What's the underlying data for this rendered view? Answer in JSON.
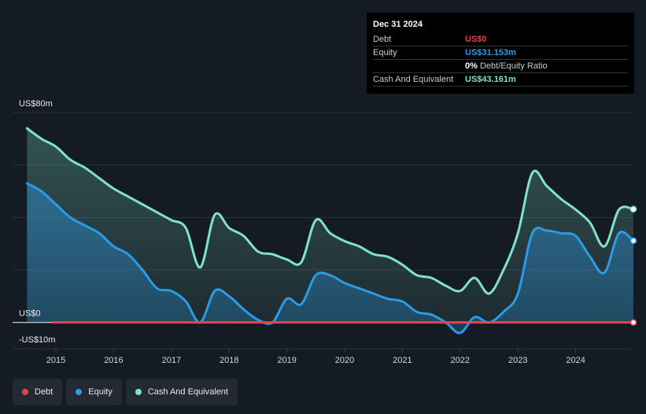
{
  "tooltip": {
    "date": "Dec 31 2024",
    "rows": [
      {
        "label": "Debt",
        "value": "US$0",
        "color": "#e8424d",
        "suffix": ""
      },
      {
        "label": "Equity",
        "value": "US$31.153m",
        "color": "#2c9be6",
        "suffix": ""
      },
      {
        "label": "",
        "value": "0%",
        "color": "#ffffff",
        "suffix": " Debt/Equity Ratio"
      },
      {
        "label": "Cash And Equivalent",
        "value": "US$43.161m",
        "color": "#7fe3cc",
        "suffix": ""
      }
    ]
  },
  "legend": [
    {
      "label": "Debt",
      "color": "#e8424d"
    },
    {
      "label": "Equity",
      "color": "#2c9be6"
    },
    {
      "label": "Cash And Equivalent",
      "color": "#7fe3cc"
    }
  ],
  "chart_data": {
    "type": "area",
    "x_ticks": [
      "2015",
      "2016",
      "2017",
      "2018",
      "2019",
      "2020",
      "2021",
      "2022",
      "2023",
      "2024"
    ],
    "y_tick_labels": [
      {
        "value": 80,
        "label": "US$80m"
      },
      {
        "value": 0,
        "label": "US$0"
      },
      {
        "value": -10,
        "label": "-US$10m"
      }
    ],
    "ylim": [
      -10,
      80
    ],
    "grid": true,
    "series": [
      {
        "name": "Debt",
        "color": "#e8424d",
        "x": [
          2014.25,
          2025.0
        ],
        "y": [
          0,
          0
        ]
      },
      {
        "name": "Equity",
        "color": "#2c9be6",
        "x": [
          2014.5,
          2014.75,
          2015.0,
          2015.25,
          2015.5,
          2015.75,
          2016.0,
          2016.25,
          2016.5,
          2016.75,
          2017.0,
          2017.25,
          2017.5,
          2017.75,
          2018.0,
          2018.25,
          2018.5,
          2018.75,
          2019.0,
          2019.25,
          2019.5,
          2019.75,
          2020.0,
          2020.25,
          2020.5,
          2020.75,
          2021.0,
          2021.25,
          2021.5,
          2021.75,
          2022.0,
          2022.25,
          2022.5,
          2022.75,
          2023.0,
          2023.25,
          2023.5,
          2023.75,
          2024.0,
          2024.25,
          2024.5,
          2024.75,
          2025.0
        ],
        "y": [
          53,
          50,
          45,
          40,
          37,
          34,
          29,
          26,
          20,
          13,
          12,
          8,
          0,
          12,
          10,
          5,
          1,
          0,
          9,
          7,
          18,
          18,
          15,
          13,
          11,
          9,
          8,
          4,
          3,
          0,
          -4,
          2,
          0,
          4,
          11,
          34,
          35,
          34,
          33,
          25,
          19,
          34,
          31.153
        ]
      },
      {
        "name": "Cash And Equivalent",
        "color": "#7fe3cc",
        "x": [
          2014.5,
          2014.75,
          2015.0,
          2015.25,
          2015.5,
          2015.75,
          2016.0,
          2016.25,
          2016.5,
          2016.75,
          2017.0,
          2017.25,
          2017.5,
          2017.75,
          2018.0,
          2018.25,
          2018.5,
          2018.75,
          2019.0,
          2019.25,
          2019.5,
          2019.75,
          2020.0,
          2020.25,
          2020.5,
          2020.75,
          2021.0,
          2021.25,
          2021.5,
          2021.75,
          2022.0,
          2022.25,
          2022.5,
          2022.75,
          2023.0,
          2023.25,
          2023.5,
          2023.75,
          2024.0,
          2024.25,
          2024.5,
          2024.75,
          2025.0
        ],
        "y": [
          74,
          70,
          67,
          62,
          59,
          55,
          51,
          48,
          45,
          42,
          39,
          36,
          21,
          41,
          36,
          33,
          27,
          26,
          24,
          23,
          39,
          34,
          31,
          29,
          26,
          25,
          22,
          18,
          17,
          14,
          12,
          17,
          11,
          20,
          34,
          57,
          52,
          47,
          43,
          38,
          29,
          43,
          43.161
        ]
      }
    ]
  }
}
